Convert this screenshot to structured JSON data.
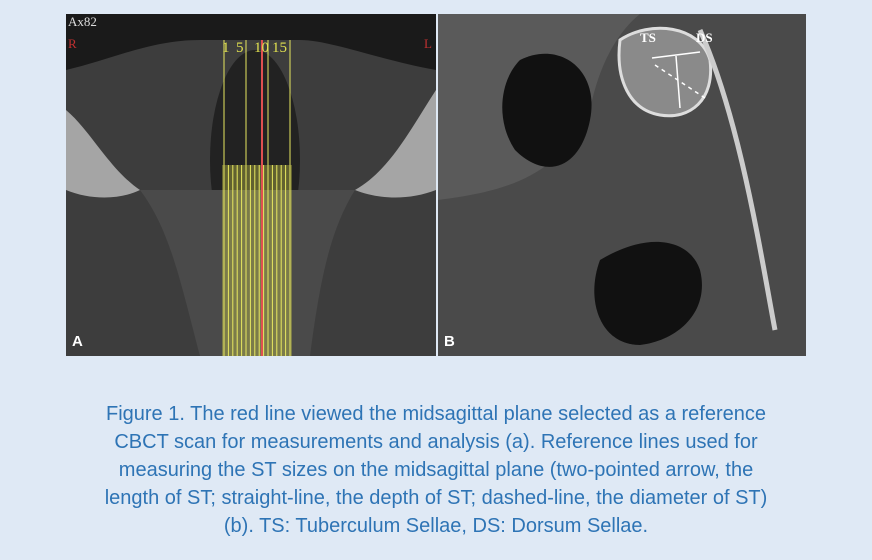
{
  "figure": {
    "panel_a": {
      "series_label": "Ax82",
      "left_marker": "R",
      "right_marker": "L",
      "line_labels": [
        "1",
        "5",
        "10",
        "15"
      ],
      "panel_label": "A"
    },
    "panel_b": {
      "landmarks": [
        "TS",
        "DS"
      ],
      "panel_label": "B"
    }
  },
  "caption": {
    "lines": [
      "Figure 1. The red line viewed the midsagittal plane selected as a reference",
      "CBCT scan for measurements and analysis (a). Reference lines used for",
      "measuring the ST sizes on the midsagittal plane (two-pointed arrow, the",
      "length of ST; straight-line, the depth of ST; dashed-line, the diameter of ST)",
      "(b). TS: Tuberculum Sellae, DS: Dorsum Sellae."
    ]
  }
}
